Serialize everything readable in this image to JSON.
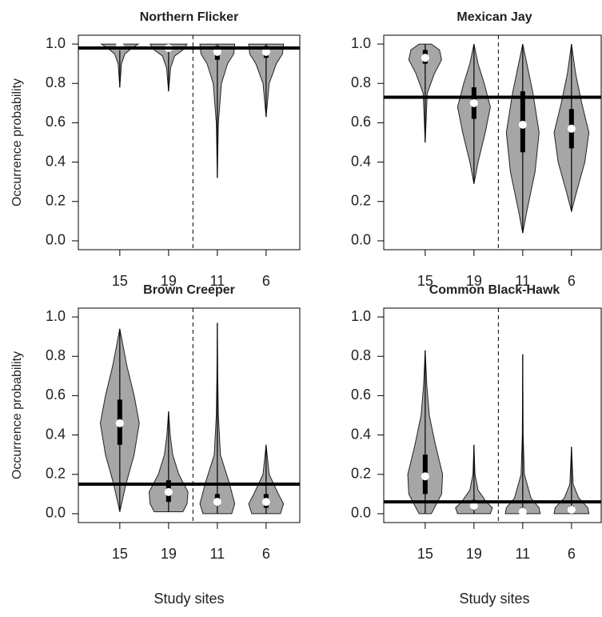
{
  "chart_data": [
    {
      "type": "violin",
      "title": "Northern Flicker",
      "ylabel": "Occurrence probability",
      "categories": [
        "15",
        "19",
        "11",
        "6"
      ],
      "ylim": [
        -0.045,
        1.045
      ],
      "yticks": [
        {
          "value": 0,
          "label": "0.0"
        },
        0.2,
        0.4,
        0.6,
        0.8,
        {
          "value": 1,
          "label": "1.0"
        }
      ],
      "color": "#a6a6a6",
      "hline": 0.98,
      "violins": [
        {
          "min": 0.78,
          "q1": 0.98,
          "median": 0.99,
          "q3": 1.0,
          "max": 1.0,
          "y": [
            0.78,
            0.9,
            0.95,
            0.98,
            1.0
          ],
          "width": [
            0,
            0.08,
            0.25,
            0.6,
            0.9
          ]
        },
        {
          "min": 0.76,
          "q1": 0.97,
          "median": 0.98,
          "q3": 1.0,
          "max": 1.0,
          "y": [
            0.76,
            0.88,
            0.94,
            0.97,
            1.0
          ],
          "width": [
            0,
            0.1,
            0.3,
            0.7,
            0.9
          ]
        },
        {
          "min": 0.32,
          "q1": 0.92,
          "median": 0.96,
          "q3": 0.99,
          "max": 1.0,
          "y": [
            0.32,
            0.6,
            0.8,
            0.9,
            0.95,
            1.0
          ],
          "width": [
            0,
            0.05,
            0.2,
            0.5,
            0.8,
            0.85
          ]
        },
        {
          "min": 0.63,
          "q1": 0.93,
          "median": 0.96,
          "q3": 0.99,
          "max": 1.0,
          "y": [
            0.63,
            0.8,
            0.9,
            0.95,
            1.0
          ],
          "width": [
            0,
            0.15,
            0.5,
            0.8,
            0.85
          ]
        }
      ]
    },
    {
      "type": "violin",
      "title": "Mexican Jay",
      "categories": [
        "15",
        "19",
        "11",
        "6"
      ],
      "ylim": [
        -0.045,
        1.045
      ],
      "yticks": [
        {
          "value": 0,
          "label": "0.0"
        },
        0.2,
        0.4,
        0.6,
        0.8,
        {
          "value": 1,
          "label": "1.0"
        }
      ],
      "color": "#a6a6a6",
      "hline": 0.73,
      "violins": [
        {
          "min": 0.5,
          "q1": 0.9,
          "median": 0.93,
          "q3": 0.97,
          "max": 1.0,
          "y": [
            0.5,
            0.75,
            0.85,
            0.92,
            0.97,
            1.0
          ],
          "width": [
            0,
            0.1,
            0.45,
            0.8,
            0.7,
            0.3
          ]
        },
        {
          "min": 0.29,
          "q1": 0.62,
          "median": 0.7,
          "q3": 0.78,
          "max": 1.0,
          "y": [
            0.29,
            0.4,
            0.55,
            0.68,
            0.8,
            0.9,
            1.0
          ],
          "width": [
            0,
            0.2,
            0.55,
            0.8,
            0.5,
            0.2,
            0
          ]
        },
        {
          "min": 0.04,
          "q1": 0.45,
          "median": 0.59,
          "q3": 0.76,
          "max": 1.0,
          "y": [
            0.04,
            0.15,
            0.35,
            0.55,
            0.75,
            0.9,
            1.0
          ],
          "width": [
            0,
            0.2,
            0.6,
            0.8,
            0.5,
            0.2,
            0
          ]
        },
        {
          "min": 0.15,
          "q1": 0.47,
          "median": 0.57,
          "q3": 0.67,
          "max": 1.0,
          "y": [
            0.15,
            0.25,
            0.4,
            0.55,
            0.7,
            0.85,
            1.0
          ],
          "width": [
            0,
            0.25,
            0.65,
            0.85,
            0.5,
            0.2,
            0
          ]
        }
      ]
    },
    {
      "type": "violin",
      "title": "Brown Creeper",
      "ylabel": "Occurrence probability",
      "xlabel": "Study sites",
      "categories": [
        "15",
        "19",
        "11",
        "6"
      ],
      "ylim": [
        -0.045,
        1.045
      ],
      "yticks": [
        {
          "value": 0,
          "label": "0.0"
        },
        0.2,
        0.4,
        0.6,
        0.8,
        {
          "value": 1,
          "label": "1.0"
        }
      ],
      "color": "#a6a6a6",
      "hline": 0.15,
      "violins": [
        {
          "min": 0.01,
          "q1": 0.35,
          "median": 0.46,
          "q3": 0.58,
          "max": 0.94,
          "y": [
            0.01,
            0.15,
            0.3,
            0.46,
            0.6,
            0.75,
            0.94
          ],
          "width": [
            0,
            0.3,
            0.7,
            0.95,
            0.7,
            0.35,
            0
          ]
        },
        {
          "min": 0.01,
          "q1": 0.06,
          "median": 0.11,
          "q3": 0.17,
          "max": 0.52,
          "y": [
            0.01,
            0.05,
            0.11,
            0.2,
            0.3,
            0.4,
            0.52
          ],
          "width": [
            0.7,
            0.9,
            0.95,
            0.5,
            0.2,
            0.08,
            0
          ]
        },
        {
          "min": 0,
          "q1": 0.04,
          "median": 0.06,
          "q3": 0.1,
          "max": 0.97,
          "y": [
            0,
            0.05,
            0.15,
            0.3,
            0.5,
            0.7,
            0.97
          ],
          "width": [
            0.7,
            0.85,
            0.6,
            0.15,
            0.05,
            0.02,
            0
          ]
        },
        {
          "min": 0,
          "q1": 0.03,
          "median": 0.06,
          "q3": 0.1,
          "max": 0.35,
          "y": [
            0,
            0.05,
            0.1,
            0.2,
            0.3,
            0.35
          ],
          "width": [
            0.7,
            0.85,
            0.6,
            0.15,
            0.05,
            0
          ]
        }
      ]
    },
    {
      "type": "violin",
      "title": "Common Black-Hawk",
      "xlabel": "Study sites",
      "categories": [
        "15",
        "19",
        "11",
        "6"
      ],
      "ylim": [
        -0.045,
        1.045
      ],
      "yticks": [
        {
          "value": 0,
          "label": "0.0"
        },
        0.2,
        0.4,
        0.6,
        0.8,
        {
          "value": 1,
          "label": "1.0"
        }
      ],
      "color": "#a6a6a6",
      "hline": 0.06,
      "violins": [
        {
          "min": 0,
          "q1": 0.1,
          "median": 0.19,
          "q3": 0.3,
          "max": 0.83,
          "y": [
            0,
            0.1,
            0.2,
            0.35,
            0.5,
            0.65,
            0.83
          ],
          "width": [
            0.3,
            0.8,
            0.85,
            0.5,
            0.2,
            0.08,
            0
          ]
        },
        {
          "min": 0,
          "q1": 0.02,
          "median": 0.04,
          "q3": 0.07,
          "max": 0.35,
          "y": [
            0,
            0.03,
            0.06,
            0.12,
            0.2,
            0.35
          ],
          "width": [
            0.8,
            0.9,
            0.6,
            0.2,
            0.05,
            0
          ]
        },
        {
          "min": 0,
          "q1": 0,
          "median": 0.01,
          "q3": 0.03,
          "max": 0.81,
          "y": [
            0,
            0.03,
            0.08,
            0.2,
            0.4,
            0.81
          ],
          "width": [
            0.85,
            0.8,
            0.4,
            0.08,
            0.02,
            0
          ]
        },
        {
          "min": 0,
          "q1": 0,
          "median": 0.02,
          "q3": 0.04,
          "max": 0.34,
          "y": [
            0,
            0.03,
            0.08,
            0.15,
            0.34
          ],
          "width": [
            0.85,
            0.8,
            0.35,
            0.08,
            0
          ]
        }
      ]
    }
  ]
}
